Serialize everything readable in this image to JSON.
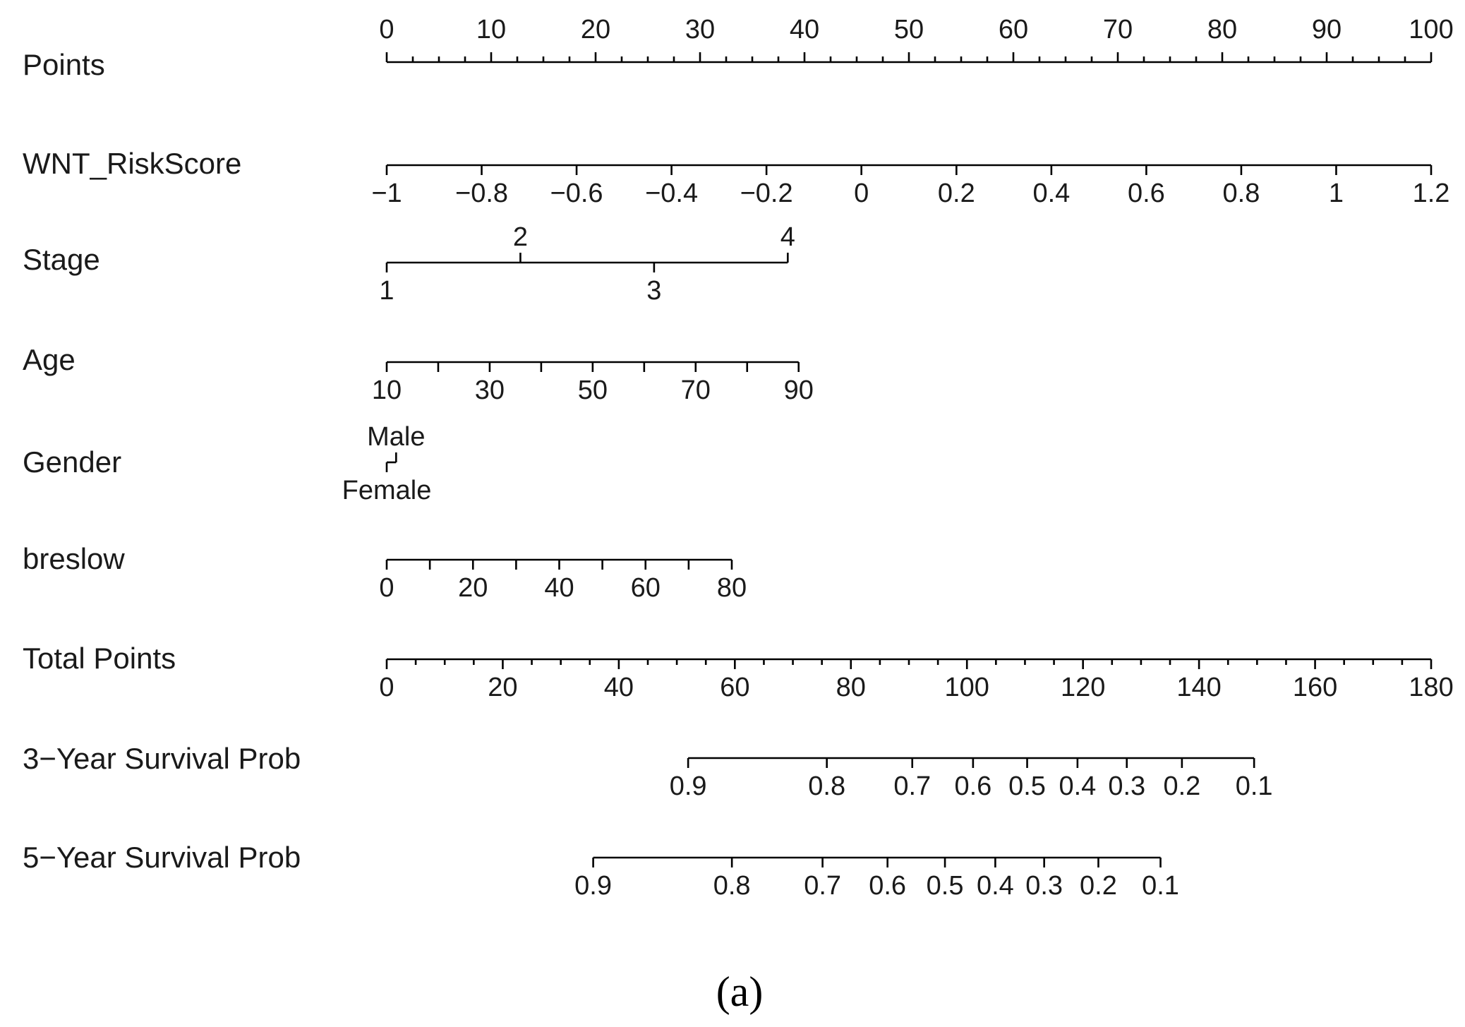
{
  "chart_data": {
    "type": "nomogram",
    "caption": "(a)",
    "rows": [
      {
        "label": "Points",
        "min": 0,
        "max": 100,
        "major_ticks": [
          0,
          10,
          20,
          30,
          40,
          50,
          60,
          70,
          80,
          90,
          100
        ],
        "major_labels": [
          "0",
          "10",
          "20",
          "30",
          "40",
          "50",
          "60",
          "70",
          "80",
          "90",
          "100"
        ],
        "minor_ticks": [
          5,
          15,
          25,
          35,
          45,
          55,
          65,
          75,
          85,
          95,
          2.5,
          7.5,
          12.5,
          17.5,
          22.5,
          27.5,
          32.5,
          37.5,
          42.5,
          47.5,
          52.5,
          57.5,
          62.5,
          67.5,
          72.5,
          77.5,
          82.5,
          87.5,
          92.5,
          97.5
        ],
        "label_position": "above",
        "tick_direction": "up",
        "range_points": [
          0,
          100
        ]
      },
      {
        "label": "WNT_RiskScore",
        "values": [
          -1,
          -0.8,
          -0.6,
          -0.4,
          -0.2,
          0,
          0.2,
          0.4,
          0.6,
          0.8,
          1,
          1.2
        ],
        "value_labels": [
          "−1",
          "−0.8",
          "−0.6",
          "−0.4",
          "−0.2",
          "0",
          "0.2",
          "0.4",
          "0.6",
          "0.8",
          "1",
          "1.2"
        ],
        "points": [
          0,
          9.09,
          18.18,
          27.27,
          36.36,
          45.45,
          54.55,
          63.64,
          72.73,
          81.82,
          90.91,
          100
        ],
        "label_position": "below",
        "tick_direction": "down"
      },
      {
        "label": "Stage",
        "values": [
          "1",
          "2",
          "3",
          "4"
        ],
        "value_labels": [
          "1",
          "2",
          "3",
          "4"
        ],
        "points": [
          0,
          12.8,
          25.6,
          38.4
        ],
        "alternate_labels": true,
        "label_position": "alternating",
        "tick_direction": "alternating"
      },
      {
        "label": "Age",
        "values": [
          10,
          20,
          30,
          40,
          50,
          60,
          70,
          80,
          90
        ],
        "value_labels": [
          "10",
          "",
          "30",
          "",
          "50",
          "",
          "70",
          "",
          "90"
        ],
        "points": [
          0,
          4.93,
          9.86,
          14.79,
          19.72,
          24.65,
          29.58,
          34.51,
          39.44
        ],
        "label_position": "below",
        "tick_direction": "down"
      },
      {
        "label": "Gender",
        "values": [
          "Female",
          "Male"
        ],
        "value_labels": [
          "Female",
          "Male"
        ],
        "points": [
          0,
          0.9
        ],
        "alternate_labels": true,
        "label_position": "alternating",
        "tick_direction": "alternating"
      },
      {
        "label": "breslow",
        "values": [
          0,
          10,
          20,
          30,
          40,
          50,
          60,
          70,
          80
        ],
        "value_labels": [
          "0",
          "",
          "20",
          "",
          "40",
          "",
          "60",
          "",
          "80"
        ],
        "points": [
          0,
          4.13,
          8.26,
          12.39,
          16.52,
          20.65,
          24.78,
          28.91,
          33.04
        ],
        "label_position": "below",
        "tick_direction": "down"
      },
      {
        "label": "Total Points",
        "min": 0,
        "max": 180,
        "major_ticks": [
          0,
          20,
          40,
          60,
          80,
          100,
          120,
          140,
          160,
          180
        ],
        "major_labels": [
          "0",
          "20",
          "40",
          "60",
          "80",
          "100",
          "120",
          "140",
          "160",
          "180"
        ],
        "minor_ticks": [
          5,
          10,
          15,
          25,
          30,
          35,
          45,
          50,
          55,
          65,
          70,
          75,
          85,
          90,
          95,
          105,
          110,
          115,
          125,
          130,
          135,
          145,
          150,
          155,
          165,
          170,
          175
        ],
        "label_position": "below",
        "tick_direction": "down",
        "range_points": [
          0,
          100
        ]
      },
      {
        "label": "3−Year Survival Prob",
        "values": [
          0.9,
          0.8,
          0.7,
          0.6,
          0.5,
          0.4,
          0.3,
          0.2,
          0.1
        ],
        "value_labels": [
          "0.9",
          "0.8",
          "0.7",
          "0.6",
          "0.5",
          "0.4",
          "0.3",
          "0.2",
          "0.1"
        ],
        "points": [
          28.86,
          42.14,
          50.32,
          56.14,
          61.32,
          66.14,
          70.86,
          76.14,
          83.05
        ],
        "label_position": "below",
        "tick_direction": "down"
      },
      {
        "label": "5−Year Survival Prob",
        "values": [
          0.9,
          0.8,
          0.7,
          0.6,
          0.5,
          0.4,
          0.3,
          0.2,
          0.1
        ],
        "value_labels": [
          "0.9",
          "0.8",
          "0.7",
          "0.6",
          "0.5",
          "0.4",
          "0.3",
          "0.2",
          "0.1"
        ],
        "points": [
          19.77,
          33.05,
          41.73,
          47.95,
          53.45,
          58.27,
          62.95,
          68.14,
          74.09
        ],
        "label_position": "below",
        "tick_direction": "down"
      }
    ]
  }
}
